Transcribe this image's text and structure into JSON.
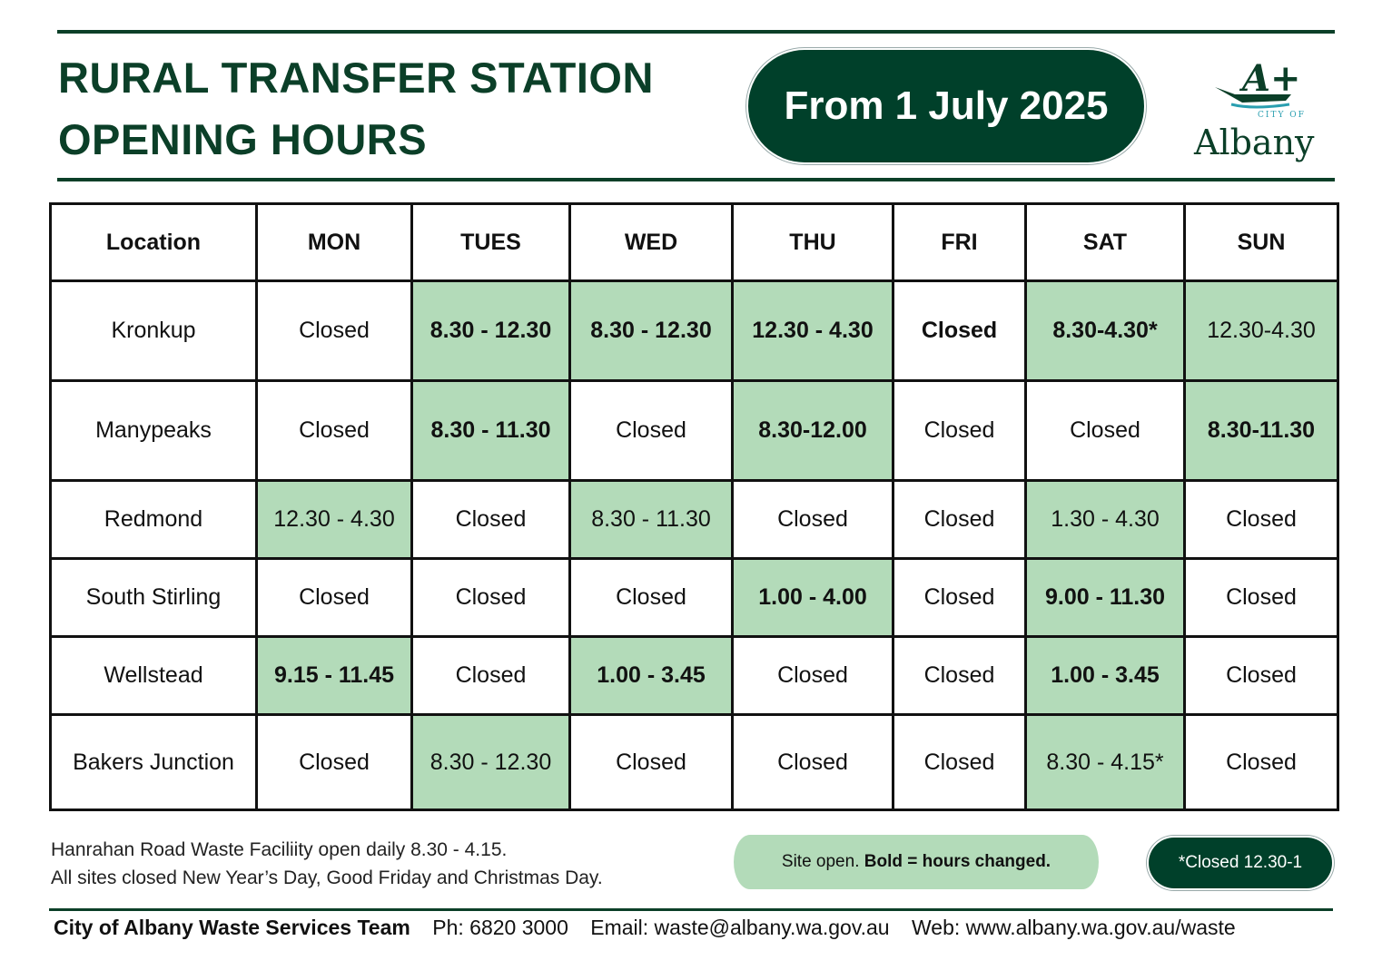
{
  "header": {
    "title_line1": "RURAL TRANSFER STATION",
    "title_line2": "OPENING HOURS",
    "date_badge": "From 1 July 2025",
    "logo": {
      "mark": "A+",
      "small_text": "CITY OF",
      "name": "Albany"
    }
  },
  "table": {
    "columns": [
      "Location",
      "MON",
      "TUES",
      "WED",
      "THU",
      "FRI",
      "SAT",
      "SUN"
    ],
    "rows": [
      {
        "location": "Kronkup",
        "cells": [
          {
            "text": "Closed",
            "bold": false,
            "open": false
          },
          {
            "text": "8.30 - 12.30",
            "bold": true,
            "open": true
          },
          {
            "text": "8.30 - 12.30",
            "bold": true,
            "open": true
          },
          {
            "text": "12.30 - 4.30",
            "bold": true,
            "open": true
          },
          {
            "text": "Closed",
            "bold": true,
            "open": false
          },
          {
            "text": "8.30-4.30*",
            "bold": true,
            "open": true
          },
          {
            "text": "12.30-4.30",
            "bold": false,
            "open": true
          }
        ]
      },
      {
        "location": "Manypeaks",
        "cells": [
          {
            "text": "Closed",
            "bold": false,
            "open": false
          },
          {
            "text": "8.30 - 11.30",
            "bold": true,
            "open": true
          },
          {
            "text": "Closed",
            "bold": false,
            "open": false
          },
          {
            "text": "8.30-12.00",
            "bold": true,
            "open": true
          },
          {
            "text": "Closed",
            "bold": false,
            "open": false
          },
          {
            "text": "Closed",
            "bold": false,
            "open": false
          },
          {
            "text": "8.30-11.30",
            "bold": true,
            "open": true
          }
        ]
      },
      {
        "location": "Redmond",
        "cells": [
          {
            "text": "12.30 - 4.30",
            "bold": false,
            "open": true
          },
          {
            "text": "Closed",
            "bold": false,
            "open": false
          },
          {
            "text": "8.30 - 11.30",
            "bold": false,
            "open": true
          },
          {
            "text": "Closed",
            "bold": false,
            "open": false
          },
          {
            "text": "Closed",
            "bold": false,
            "open": false
          },
          {
            "text": "1.30 - 4.30",
            "bold": false,
            "open": true
          },
          {
            "text": "Closed",
            "bold": false,
            "open": false
          }
        ]
      },
      {
        "location": "South Stirling",
        "cells": [
          {
            "text": "Closed",
            "bold": false,
            "open": false
          },
          {
            "text": "Closed",
            "bold": false,
            "open": false
          },
          {
            "text": "Closed",
            "bold": false,
            "open": false
          },
          {
            "text": "1.00 - 4.00",
            "bold": true,
            "open": true
          },
          {
            "text": "Closed",
            "bold": false,
            "open": false
          },
          {
            "text": "9.00 - 11.30",
            "bold": true,
            "open": true
          },
          {
            "text": "Closed",
            "bold": false,
            "open": false
          }
        ]
      },
      {
        "location": "Wellstead",
        "cells": [
          {
            "text": "9.15 - 11.45",
            "bold": true,
            "open": true
          },
          {
            "text": "Closed",
            "bold": false,
            "open": false
          },
          {
            "text": "1.00 - 3.45",
            "bold": true,
            "open": true
          },
          {
            "text": "Closed",
            "bold": false,
            "open": false
          },
          {
            "text": "Closed",
            "bold": false,
            "open": false
          },
          {
            "text": "1.00 - 3.45",
            "bold": true,
            "open": true
          },
          {
            "text": "Closed",
            "bold": false,
            "open": false
          }
        ]
      },
      {
        "location": "Bakers Junction",
        "cells": [
          {
            "text": "Closed",
            "bold": false,
            "open": false
          },
          {
            "text": "8.30 - 12.30",
            "bold": false,
            "open": true
          },
          {
            "text": "Closed",
            "bold": false,
            "open": false
          },
          {
            "text": "Closed",
            "bold": false,
            "open": false
          },
          {
            "text": "Closed",
            "bold": false,
            "open": false
          },
          {
            "text": "8.30 - 4.15*",
            "bold": false,
            "open": true
          },
          {
            "text": "Closed",
            "bold": false,
            "open": false
          }
        ]
      }
    ]
  },
  "notes": {
    "line1": "Hanrahan Road Waste Faciliity open daily 8.30 - 4.15.",
    "line2": "All sites closed New Year’s Day, Good Friday and Christmas Day."
  },
  "legend": {
    "open_prefix": "Site open. ",
    "open_bold": "Bold = hours changed.",
    "closed_note": "*Closed 12.30-1"
  },
  "footer": {
    "team": "City of Albany Waste Services Team",
    "phone": "Ph: 6820 3000",
    "email": "Email: waste@albany.wa.gov.au",
    "web": "Web: www.albany.wa.gov.au/waste"
  },
  "colors": {
    "dark_green": "#00402a",
    "light_green": "#b3dbb9"
  }
}
